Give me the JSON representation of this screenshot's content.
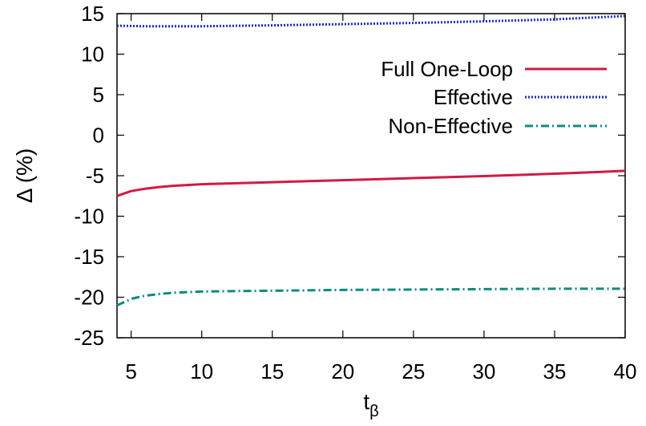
{
  "chart_data": {
    "type": "line",
    "xlabel": "t",
    "xlabel_subscript": "β",
    "ylabel": "Δ (%)",
    "xlim": [
      4,
      40
    ],
    "ylim": [
      -25,
      15
    ],
    "xticks": [
      5,
      10,
      15,
      20,
      25,
      30,
      35,
      40
    ],
    "yticks": [
      -25,
      -20,
      -15,
      -10,
      -5,
      0,
      5,
      10,
      15
    ],
    "grid": false,
    "legend_position": "top-right",
    "series": [
      {
        "name": "Full One-Loop",
        "color": "#d11a45",
        "style": "solid",
        "x": [
          4,
          4.5,
          5,
          6,
          7,
          8,
          10,
          12,
          15,
          20,
          25,
          30,
          35,
          38,
          40
        ],
        "y": [
          -7.5,
          -7.2,
          -6.9,
          -6.6,
          -6.4,
          -6.25,
          -6.05,
          -5.95,
          -5.8,
          -5.55,
          -5.3,
          -5.05,
          -4.75,
          -4.55,
          -4.4
        ]
      },
      {
        "name": "Effective",
        "color": "#1a2bbf",
        "style": "dotted",
        "x": [
          4,
          6,
          8,
          10,
          15,
          20,
          25,
          30,
          35,
          40
        ],
        "y": [
          13.5,
          13.45,
          13.45,
          13.45,
          13.55,
          13.7,
          13.85,
          14.05,
          14.3,
          14.7
        ]
      },
      {
        "name": "Non-Effective",
        "color": "#0e8a86",
        "style": "dash-dot",
        "x": [
          4,
          4.5,
          5,
          6,
          7,
          8,
          10,
          12,
          15,
          20,
          25,
          30,
          35,
          40
        ],
        "y": [
          -21.0,
          -20.6,
          -20.2,
          -19.8,
          -19.6,
          -19.45,
          -19.3,
          -19.25,
          -19.2,
          -19.1,
          -19.05,
          -19.0,
          -18.95,
          -18.95
        ]
      }
    ]
  }
}
